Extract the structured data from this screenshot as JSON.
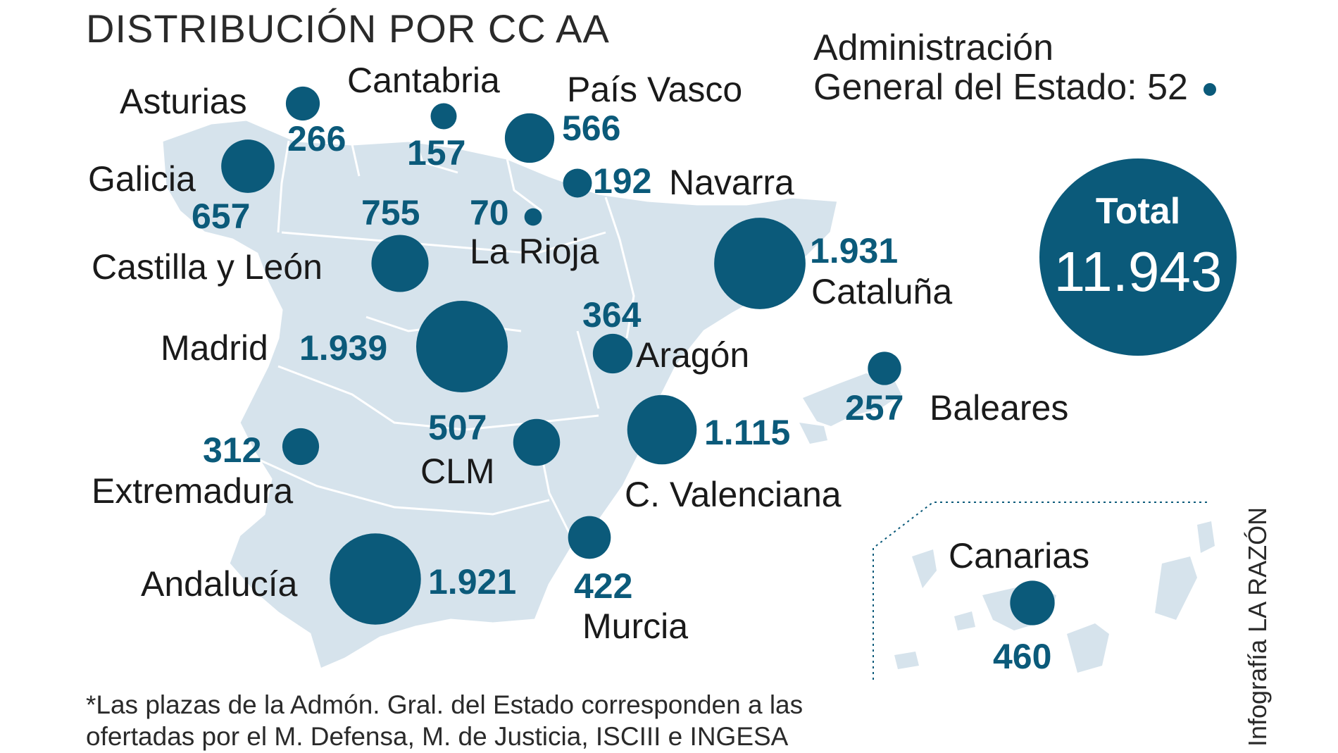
{
  "title": "DISTRIBUCIÓN POR CC AA",
  "age": {
    "line1": "Administración",
    "line2": "General del Estado: 52"
  },
  "total": {
    "label": "Total",
    "value": "11.943"
  },
  "regions": [
    {
      "name": "Asturias",
      "value_text": "266",
      "value": 266
    },
    {
      "name": "Cantabria",
      "value_text": "157",
      "value": 157
    },
    {
      "name": "País Vasco",
      "value_text": "566",
      "value": 566
    },
    {
      "name": "Galicia",
      "value_text": "657",
      "value": 657
    },
    {
      "name": "Navarra",
      "value_text": "192",
      "value": 192
    },
    {
      "name": "La Rioja",
      "value_text": "70",
      "value": 70
    },
    {
      "name": "Castilla y León",
      "value_text": "755",
      "value": 755
    },
    {
      "name": "Cataluña",
      "value_text": "1.931",
      "value": 1931
    },
    {
      "name": "Madrid",
      "value_text": "1.939",
      "value": 1939
    },
    {
      "name": "Aragón",
      "value_text": "364",
      "value": 364
    },
    {
      "name": "Baleares",
      "value_text": "257",
      "value": 257
    },
    {
      "name": "Extremadura",
      "value_text": "312",
      "value": 312
    },
    {
      "name": "CLM",
      "value_text": "507",
      "value": 507
    },
    {
      "name": "C. Valenciana",
      "value_text": "1.115",
      "value": 1115
    },
    {
      "name": "Andalucía",
      "value_text": "1.921",
      "value": 1921
    },
    {
      "name": "Murcia",
      "value_text": "422",
      "value": 422
    },
    {
      "name": "Canarias",
      "value_text": "460",
      "value": 460
    }
  ],
  "footnote": {
    "line1": "*Las plazas de la Admón. Gral. del Estado corresponden a las",
    "line2": "ofertadas por el M. Defensa, M. de Justicia, ISCIII e INGESA"
  },
  "credit": "Infografía LA RAZÓN",
  "colors": {
    "bubble": "#0b5a7a",
    "land": "#d6e3ec",
    "border": "#ffffff",
    "number": "#0b5a7a"
  }
}
